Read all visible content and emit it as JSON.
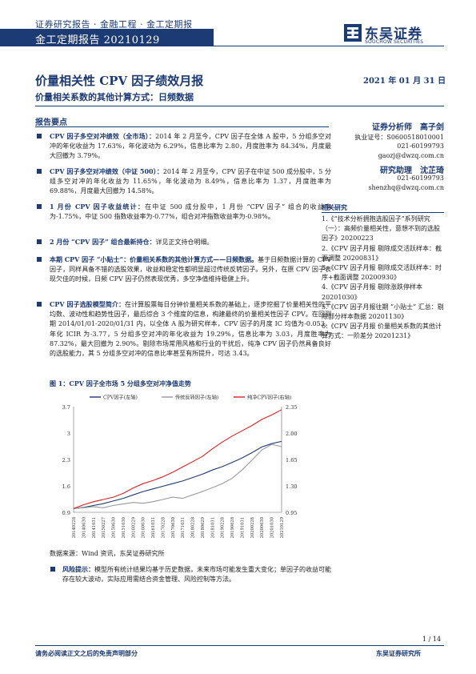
{
  "header": {
    "category": "证券研究报告 · 金融工程 · 金工定期报告",
    "series": "金工定期报告 20210129",
    "logo_cn": "东吴证券",
    "logo_en": "SOOCHOW SECURITIES"
  },
  "report": {
    "title": "价量相关性 CPV 因子绩效月报",
    "subtitle": "价量相关系数的其他计算方式：日频数据",
    "date": "2021 年 01 月 31 日"
  },
  "summary": {
    "heading": "报告要点",
    "items": [
      {
        "lead": "CPV 因子多空对冲绩效（全市场）：",
        "text": "2014 年 2 月至今，CPV 因子在全体 A 股中，5 分组多空对冲的年化收益为 17.63%，年化波动为 6.29%，信息比率为 2.80，月度胜率为 84.34%，月度最大回撤为 3.79%。"
      },
      {
        "lead": "CPV 因子多空对冲绩效（中证 500）：",
        "text": "2014 年 2 月至今，CPV 因子在中证 500 成分股中，5 分组多空对冲的年化收益为 11.65%，年化波动为 8.49%，信息比率为 1.37，月度胜率为 69.88%，月度最大回撤为 14.58%。"
      },
      {
        "lead": "1 月份 CPV 因子收益统计：",
        "text": "在中证 500 成分股中，1 月份 “CPV 因子” 组合的收益率为-1.75%，中证 500 指数收益率为-0.77%，组合对冲指数收益率为-0.98%。"
      },
      {
        "lead": "2 月份 “CPV 因子” 组合最新持仓：",
        "text": "详见正文持仓明细。"
      },
      {
        "lead": "本期 CPV 因子 “小贴士”：价量相关系数的其他计算方式——日频数据。",
        "text": "基于日频数据计算的 CPV 因子，同样具备不错的选股效果，收益和稳定性都明显超过传统反转因子。另外，在原 CPV 因子表现欠佳的时候，日频 CPV 因子仍然表现优秀，多空净值维持稳健上升。"
      },
      {
        "lead": "CPV 因子选股模型简介：",
        "text": "在计算股票每日分钟价量相关系数的基础上，逐步挖掘了价量相关性的平均数、波动性和趋势性因子，最后综合 3 个维度的信息，构建最终的价量相关性因子 CPV。在回测期 2014/01/01-2020/01/31 内，以全体 A 股为研究样本，CPV 因子的月度 IC 均值为-0.053，年化 ICIR 为-3.77，5 分组多空对冲的年化收益为 19.29%，信息比率为 3.03，月度胜率为 87.32%，最大回撤为 2.90%。剔除市场常用风格和行业的干扰后，纯净 CPV 因子仍然具备良好的选股能力，其 5 分组多空对冲的信息比率甚至有所提升，可达 3.43。"
      }
    ]
  },
  "figure": {
    "caption": "图 1：CPV 因子全市场 5 分组多空对冲净值走势",
    "source": "数据来源：Wind 资讯，东吴证券研究所"
  },
  "chart_data": {
    "type": "line",
    "title": "",
    "legend": [
      "CPV因子(左轴)",
      "传统反转因子(左轴)",
      "纯净CPV因子(右轴)"
    ],
    "legend_position": "top",
    "x_ticks": [
      "20140228",
      "20140630",
      "20141031",
      "20150227",
      "20150630",
      "20151030",
      "20160229",
      "20160630",
      "20161031",
      "20170228",
      "20170630",
      "20171031",
      "20180228",
      "20180629",
      "20181031",
      "20190228",
      "20190628",
      "20191031",
      "20200228",
      "20200630",
      "20201030",
      "20210129"
    ],
    "y_left_ticks": [
      "0.9",
      "1.6",
      "2.3",
      "3",
      "3.7"
    ],
    "y_right_ticks": [
      "0.95",
      "1.30",
      "1.65",
      "2.00",
      "2.35"
    ],
    "y_left_range": [
      0.9,
      3.7
    ],
    "y_right_range": [
      0.95,
      2.35
    ],
    "series": [
      {
        "name": "CPV因子(左轴)",
        "axis": "left",
        "color": "#1c3a74",
        "values": [
          1.0,
          1.03,
          1.08,
          1.13,
          1.2,
          1.27,
          1.36,
          1.45,
          1.52,
          1.59,
          1.66,
          1.73,
          1.82,
          1.91,
          2.02,
          2.11,
          2.22,
          2.34,
          2.48,
          2.63,
          2.72,
          2.78
        ]
      },
      {
        "name": "传统反转因子(左轴)",
        "axis": "left",
        "color": "#9a9a9a",
        "values": [
          1.0,
          1.02,
          1.05,
          1.02,
          1.08,
          1.12,
          1.16,
          1.14,
          1.18,
          1.24,
          1.3,
          1.27,
          1.36,
          1.45,
          1.55,
          1.66,
          1.8,
          2.02,
          2.28,
          2.55,
          2.7,
          2.64
        ]
      },
      {
        "name": "纯净CPV因子(右轴)",
        "axis": "right",
        "color": "#e02020",
        "values": [
          1.0,
          1.05,
          1.09,
          1.12,
          1.15,
          1.2,
          1.27,
          1.33,
          1.37,
          1.42,
          1.48,
          1.55,
          1.62,
          1.69,
          1.79,
          1.88,
          1.96,
          2.03,
          2.1,
          2.18,
          2.24,
          2.31
        ]
      }
    ]
  },
  "risk": {
    "lead": "风险提示：",
    "text": "模型所有统计结果均基于历史数据，未来市场可能发生重大变化；单因子的收益可能存在较大波动，实际应用需结合资金管理、风险控制等方法。"
  },
  "analysts": {
    "a1_role": "证券分析师　高子剑",
    "a1_license": "执业证号：S0600518010001",
    "a1_phone": "021-60199793",
    "a1_email": "gaozj@dwzq.com.cn",
    "a2_role": "研究助理　沈芷琦",
    "a2_phone": "021-60199793",
    "a2_email": "shenzhq@dwzq.com.cn"
  },
  "related": {
    "heading": "相关研究",
    "items": [
      "1.《“技术分析拥抱选股因子”系列研究（一）：高频价量相关性，意想不到的选股因子》20200223",
      "2.《CPV 因子月报 剔除成交活跃样本：截面调整 20200831》",
      "3.《CPV 因子月报 剔除成交活跃样本：时序+截面调整 20200930》",
      "4.《CPV 因子月报 剔除涨跌停样本 20201030》",
      "5.《CPV 因子月报往期 “小贴士” 汇总：剔除部分样本数据 20201130》",
      "6.《CPV 因子月报 价量相关系数的其他计算方式：一阶差分 20201231》"
    ]
  },
  "footer": {
    "page": "1 / 14",
    "disclaimer": "请务必阅读正文之后的免责声明部分",
    "institute": "东吴证券研究所"
  }
}
